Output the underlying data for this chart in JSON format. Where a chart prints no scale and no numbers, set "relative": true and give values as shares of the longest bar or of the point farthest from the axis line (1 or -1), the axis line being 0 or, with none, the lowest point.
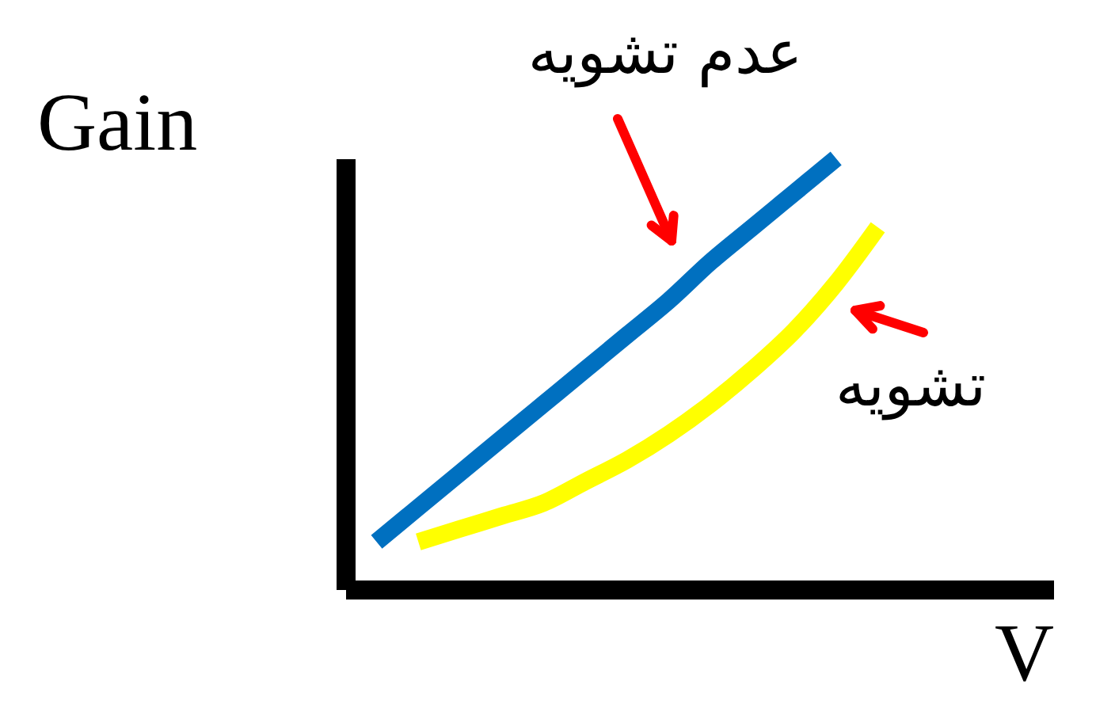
{
  "chart_data": {
    "type": "line",
    "relative": true,
    "xlabel": "V",
    "ylabel": "Gain",
    "categories": [
      null,
      null,
      null,
      null,
      null,
      null,
      null,
      null,
      null,
      null,
      null,
      null,
      null
    ],
    "series": [
      {
        "name": "عدم تشويه",
        "color": "#0070c0",
        "values": [
          0.11,
          0.19,
          0.27,
          0.35,
          0.43,
          0.51,
          0.59,
          0.67,
          0.76,
          0.84,
          0.92,
          1.0,
          null
        ]
      },
      {
        "name": "تشويه",
        "color": "#ffff00",
        "values": [
          null,
          0.11,
          0.14,
          0.17,
          0.2,
          0.25,
          0.3,
          0.36,
          0.43,
          0.51,
          0.6,
          0.71,
          0.84
        ]
      }
    ]
  }
}
